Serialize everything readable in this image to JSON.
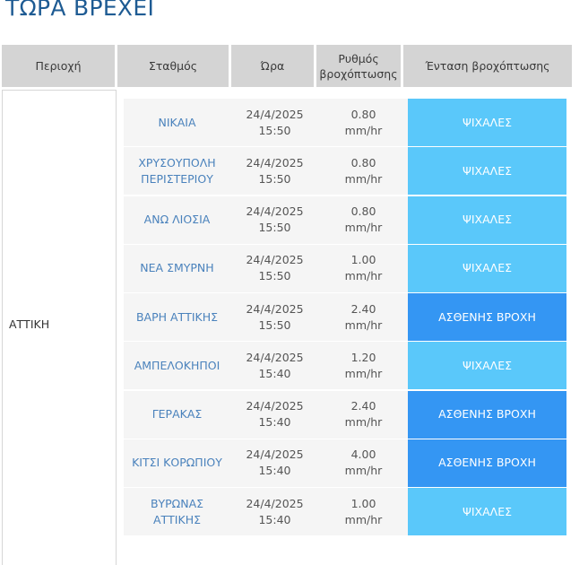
{
  "page": {
    "title": "ΤΩΡΑ ΒΡΕΧΕΙ"
  },
  "table": {
    "headers": {
      "region": "Περιοχή",
      "station": "Σταθμός",
      "time": "Ώρα",
      "rate_line1": "Ρυθμός",
      "rate_line2": "βροχόπτωσης",
      "intensity": "Ένταση βροχόπτωσης"
    },
    "region": "ΑΤΤΙΚΗ",
    "rows": [
      {
        "station1": "ΝΙΚΑΙΑ",
        "station2": "",
        "date": "24/4/2025",
        "time": "15:50",
        "rate": "0.80",
        "unit": "mm/hr",
        "intensity": "ΨΙΧΑΛΕΣ"
      },
      {
        "station1": "ΧΡΥΣΟΥΠΟΛΗ",
        "station2": "ΠΕΡΙΣΤΕΡΙΟΥ",
        "date": "24/4/2025",
        "time": "15:50",
        "rate": "0.80",
        "unit": "mm/hr",
        "intensity": "ΨΙΧΑΛΕΣ"
      },
      {
        "station1": "ΑΝΩ ΛΙΟΣΙΑ",
        "station2": "",
        "date": "24/4/2025",
        "time": "15:50",
        "rate": "0.80",
        "unit": "mm/hr",
        "intensity": "ΨΙΧΑΛΕΣ"
      },
      {
        "station1": "ΝΕΑ ΣΜΥΡΝΗ",
        "station2": "",
        "date": "24/4/2025",
        "time": "15:50",
        "rate": "1.00",
        "unit": "mm/hr",
        "intensity": "ΨΙΧΑΛΕΣ"
      },
      {
        "station1": "ΒΑΡΗ ΑΤΤΙΚΗΣ",
        "station2": "",
        "date": "24/4/2025",
        "time": "15:50",
        "rate": "2.40",
        "unit": "mm/hr",
        "intensity": "ΑΣΘΕΝΗΣ ΒΡΟΧΗ"
      },
      {
        "station1": "ΑΜΠΕΛΟΚΗΠΟΙ",
        "station2": "",
        "date": "24/4/2025",
        "time": "15:40",
        "rate": "1.20",
        "unit": "mm/hr",
        "intensity": "ΨΙΧΑΛΕΣ"
      },
      {
        "station1": "ΓΕΡΑΚΑΣ",
        "station2": "",
        "date": "24/4/2025",
        "time": "15:40",
        "rate": "2.40",
        "unit": "mm/hr",
        "intensity": "ΑΣΘΕΝΗΣ ΒΡΟΧΗ"
      },
      {
        "station1": "ΚΙΤΣΙ ΚΟΡΩΠΙΟΥ",
        "station2": "",
        "date": "24/4/2025",
        "time": "15:40",
        "rate": "4.00",
        "unit": "mm/hr",
        "intensity": "ΑΣΘΕΝΗΣ ΒΡΟΧΗ"
      },
      {
        "station1": "ΒΥΡΩΝΑΣ",
        "station2": "ΑΤΤΙΚΗΣ",
        "date": "24/4/2025",
        "time": "15:40",
        "rate": "1.00",
        "unit": "mm/hr",
        "intensity": "ΨΙΧΑΛΕΣ"
      }
    ]
  },
  "colors": {
    "ΨΙΧΑΛΕΣ": "#5ac8fa",
    "ΑΣΘΕΝΗΣ ΒΡΟΧΗ": "#3496f3"
  }
}
